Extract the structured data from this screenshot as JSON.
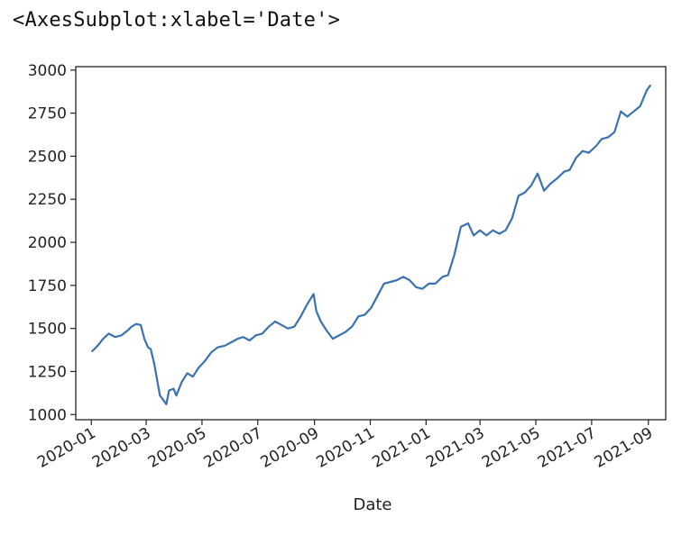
{
  "cell_output": {
    "repr": "<AxesSubplot:xlabel='Date'>"
  },
  "colors": {
    "line": "#3a72b0",
    "axis": "#222222",
    "background": "#ffffff"
  },
  "chart_data": {
    "type": "line",
    "title": "",
    "xlabel": "Date",
    "ylabel": "",
    "grid": false,
    "legend": "none",
    "xlim": [
      "2019-12-15",
      "2021-09-20"
    ],
    "ylim": [
      970,
      3020
    ],
    "x_ticks": [
      "2020-01",
      "2020-03",
      "2020-05",
      "2020-07",
      "2020-09",
      "2020-11",
      "2021-01",
      "2021-03",
      "2021-05",
      "2021-07",
      "2021-09"
    ],
    "y_ticks": [
      1000,
      1250,
      1500,
      1750,
      2000,
      2250,
      2500,
      2750,
      3000
    ],
    "series": [
      {
        "name": "",
        "x": [
          "2020-01-02",
          "2020-01-08",
          "2020-01-14",
          "2020-01-20",
          "2020-01-27",
          "2020-02-03",
          "2020-02-10",
          "2020-02-14",
          "2020-02-19",
          "2020-02-24",
          "2020-02-28",
          "2020-03-03",
          "2020-03-06",
          "2020-03-10",
          "2020-03-13",
          "2020-03-16",
          "2020-03-19",
          "2020-03-23",
          "2020-03-26",
          "2020-03-31",
          "2020-04-03",
          "2020-04-09",
          "2020-04-15",
          "2020-04-21",
          "2020-04-27",
          "2020-05-04",
          "2020-05-11",
          "2020-05-18",
          "2020-05-26",
          "2020-06-02",
          "2020-06-09",
          "2020-06-15",
          "2020-06-22",
          "2020-06-29",
          "2020-07-06",
          "2020-07-13",
          "2020-07-20",
          "2020-07-27",
          "2020-08-03",
          "2020-08-10",
          "2020-08-17",
          "2020-08-24",
          "2020-08-31",
          "2020-09-03",
          "2020-09-08",
          "2020-09-14",
          "2020-09-21",
          "2020-09-28",
          "2020-10-05",
          "2020-10-12",
          "2020-10-19",
          "2020-10-26",
          "2020-11-02",
          "2020-11-09",
          "2020-11-16",
          "2020-11-23",
          "2020-11-30",
          "2020-12-07",
          "2020-12-14",
          "2020-12-21",
          "2020-12-28",
          "2021-01-04",
          "2021-01-11",
          "2021-01-19",
          "2021-01-25",
          "2021-02-01",
          "2021-02-08",
          "2021-02-16",
          "2021-02-22",
          "2021-03-01",
          "2021-03-08",
          "2021-03-15",
          "2021-03-22",
          "2021-03-29",
          "2021-04-05",
          "2021-04-12",
          "2021-04-19",
          "2021-04-26",
          "2021-05-03",
          "2021-05-10",
          "2021-05-17",
          "2021-05-24",
          "2021-06-01",
          "2021-06-07",
          "2021-06-14",
          "2021-06-21",
          "2021-06-28",
          "2021-07-06",
          "2021-07-12",
          "2021-07-19",
          "2021-07-26",
          "2021-08-02",
          "2021-08-09",
          "2021-08-16",
          "2021-08-23",
          "2021-08-30",
          "2021-09-03"
        ],
        "y": [
          1368,
          1400,
          1440,
          1470,
          1450,
          1460,
          1490,
          1510,
          1526,
          1520,
          1440,
          1390,
          1380,
          1290,
          1200,
          1110,
          1090,
          1060,
          1140,
          1150,
          1110,
          1190,
          1240,
          1220,
          1270,
          1310,
          1360,
          1390,
          1400,
          1420,
          1440,
          1450,
          1430,
          1460,
          1470,
          1510,
          1540,
          1520,
          1500,
          1510,
          1570,
          1640,
          1700,
          1600,
          1540,
          1490,
          1440,
          1460,
          1480,
          1510,
          1570,
          1580,
          1620,
          1690,
          1760,
          1770,
          1780,
          1800,
          1780,
          1740,
          1730,
          1760,
          1760,
          1800,
          1810,
          1930,
          2090,
          2110,
          2040,
          2070,
          2040,
          2070,
          2050,
          2070,
          2140,
          2270,
          2290,
          2330,
          2400,
          2300,
          2340,
          2370,
          2410,
          2420,
          2490,
          2530,
          2520,
          2560,
          2600,
          2610,
          2640,
          2760,
          2730,
          2760,
          2790,
          2880,
          2910
        ]
      }
    ]
  }
}
